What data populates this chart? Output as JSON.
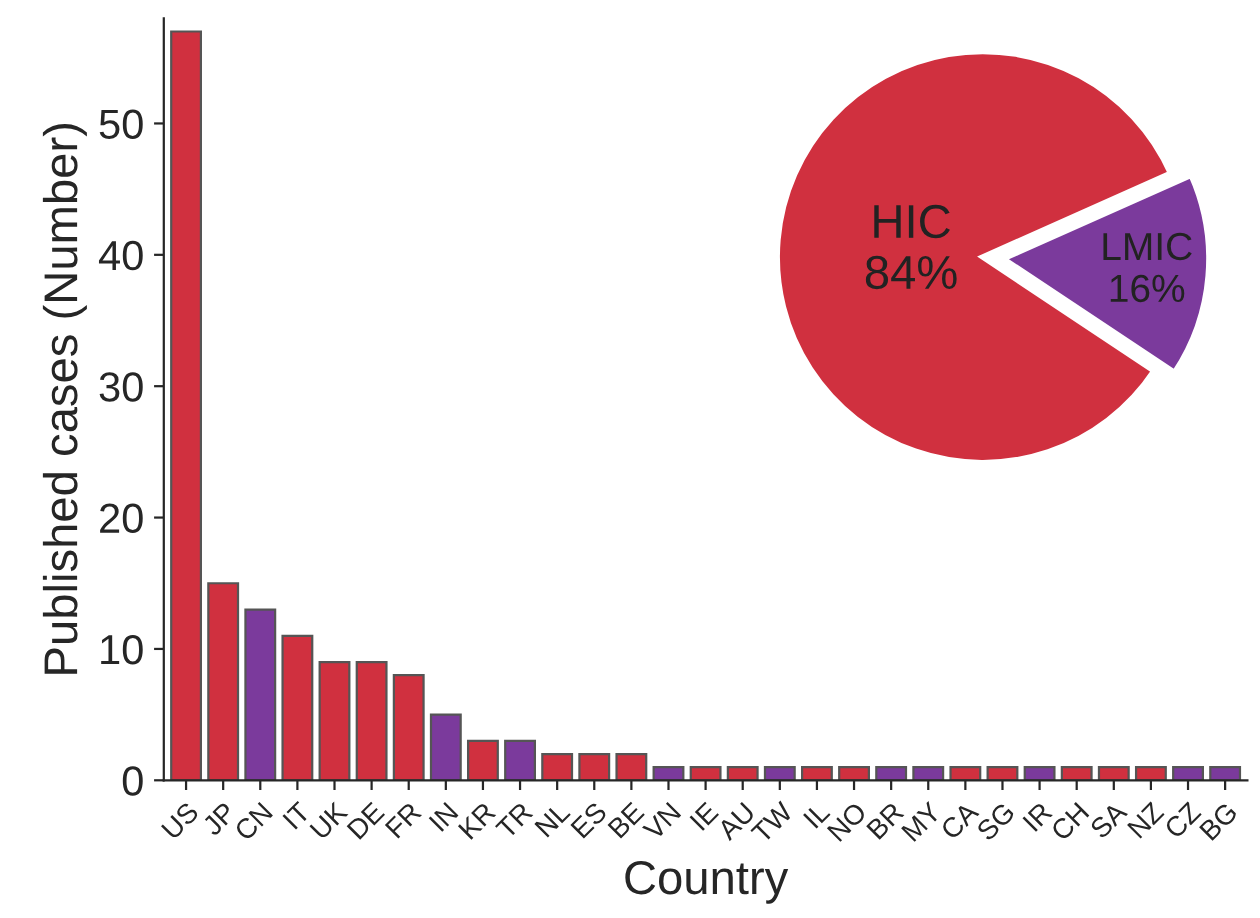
{
  "chart_data": [
    {
      "type": "bar",
      "xlabel": "Country",
      "ylabel": "Published cases (Number)",
      "categories": [
        "US",
        "JP",
        "CN",
        "IT",
        "UK",
        "DE",
        "FR",
        "IN",
        "KR",
        "TR",
        "NL",
        "ES",
        "BE",
        "VN",
        "IE",
        "AU",
        "TW",
        "IL",
        "NO",
        "BR",
        "MY",
        "CA",
        "SG",
        "IR",
        "CH",
        "SA",
        "NZ",
        "CZ",
        "BG"
      ],
      "values": [
        57,
        15,
        13,
        11,
        9,
        9,
        8,
        5,
        3,
        3,
        2,
        2,
        2,
        1,
        1,
        1,
        1,
        1,
        1,
        1,
        1,
        1,
        1,
        1,
        1,
        1,
        1,
        1,
        1
      ],
      "colors": [
        "#d0303f",
        "#d0303f",
        "#7b3a9c",
        "#d0303f",
        "#d0303f",
        "#d0303f",
        "#d0303f",
        "#7b3a9c",
        "#d0303f",
        "#7b3a9c",
        "#d0303f",
        "#d0303f",
        "#d0303f",
        "#7b3a9c",
        "#d0303f",
        "#d0303f",
        "#7b3a9c",
        "#d0303f",
        "#d0303f",
        "#7b3a9c",
        "#7b3a9c",
        "#d0303f",
        "#d0303f",
        "#7b3a9c",
        "#d0303f",
        "#d0303f",
        "#d0303f",
        "#7b3a9c",
        "#7b3a9c"
      ],
      "ylim": [
        0,
        58
      ],
      "yticks": [
        0,
        10,
        20,
        30,
        40,
        50
      ],
      "grid": false
    },
    {
      "type": "pie",
      "categories": [
        "HIC",
        "LMIC"
      ],
      "values": [
        84,
        16
      ],
      "value_labels": [
        "84%",
        "16%"
      ],
      "colors": [
        "#d0303f",
        "#7b3a9c"
      ]
    }
  ]
}
